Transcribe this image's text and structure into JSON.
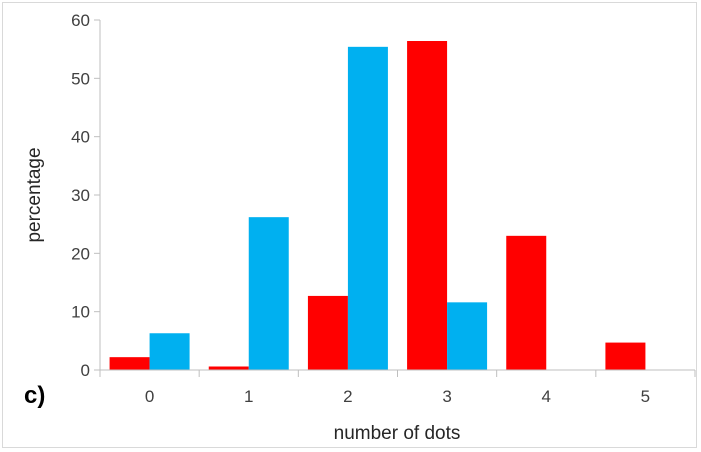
{
  "chart_data": {
    "type": "bar",
    "panel_label": "c)",
    "xlabel": "number of dots",
    "ylabel": "percentage",
    "categories": [
      "0",
      "1",
      "2",
      "3",
      "4",
      "5"
    ],
    "ylim": [
      0,
      60
    ],
    "yticks": [
      "0",
      "10",
      "20",
      "30",
      "40",
      "50",
      "60"
    ],
    "grid": false,
    "legend": "none",
    "series": [
      {
        "color": "#ff0000",
        "values": [
          2.2,
          0.6,
          12.7,
          56.4,
          23.0,
          4.7
        ]
      },
      {
        "color": "#00b0f0",
        "values": [
          6.3,
          26.2,
          55.4,
          11.6,
          0,
          0
        ]
      }
    ]
  }
}
